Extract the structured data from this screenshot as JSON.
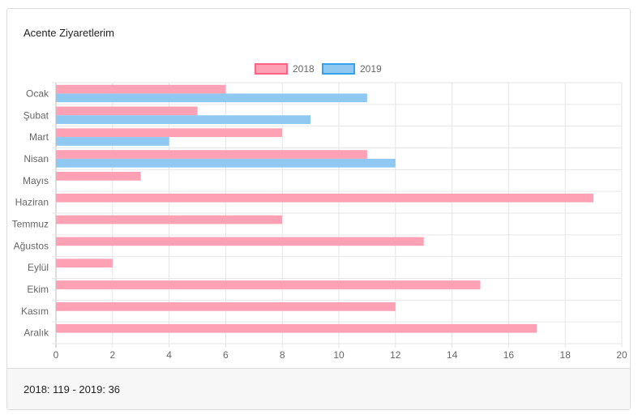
{
  "title": "Acente Ziyaretlerim",
  "footer": "2018: 119 - 2019: 36",
  "chart_data": {
    "type": "bar",
    "orientation": "horizontal",
    "categories": [
      "Ocak",
      "Şubat",
      "Mart",
      "Nisan",
      "Mayıs",
      "Haziran",
      "Temmuz",
      "Ağustos",
      "Eylül",
      "Ekim",
      "Kasım",
      "Aralık"
    ],
    "series": [
      {
        "name": "2018",
        "values": [
          6,
          5,
          8,
          11,
          3,
          19,
          8,
          13,
          2,
          15,
          12,
          17
        ],
        "color": "#ff6384",
        "fill": "#ffa1b5"
      },
      {
        "name": "2019",
        "values": [
          11,
          9,
          4,
          12,
          0,
          0,
          0,
          0,
          0,
          0,
          0,
          0
        ],
        "color": "#36a2eb",
        "fill": "#8fc9f2"
      }
    ],
    "xlim": [
      0,
      20
    ],
    "xticks": [
      0,
      2,
      4,
      6,
      8,
      10,
      12,
      14,
      16,
      18,
      20
    ],
    "legend": "top",
    "grid": true
  }
}
